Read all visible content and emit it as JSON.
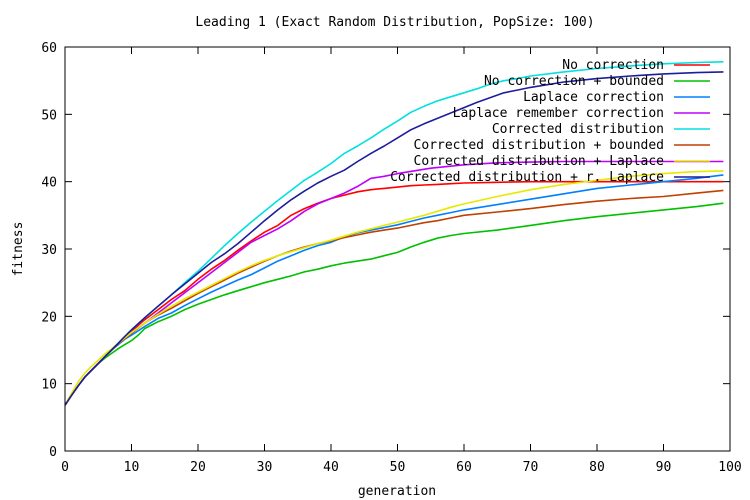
{
  "chart_data": {
    "type": "line",
    "title": "Leading 1 (Exact Random Distribution, PopSize: 100)",
    "xlabel": "generation",
    "ylabel": "fitness",
    "xlim": [
      0,
      100
    ],
    "ylim": [
      0,
      60
    ],
    "xticks": [
      0,
      10,
      20,
      30,
      40,
      50,
      60,
      70,
      80,
      90,
      100
    ],
    "yticks": [
      0,
      10,
      20,
      30,
      40,
      50,
      60
    ],
    "grid": false,
    "legend_position": "top-right",
    "series": [
      {
        "name": "No correction",
        "color": "#ff0000",
        "x": [
          0,
          1,
          2,
          3,
          4,
          5,
          6,
          7,
          8,
          9,
          10,
          12,
          14,
          16,
          18,
          20,
          22,
          24,
          26,
          28,
          30,
          32,
          34,
          36,
          38,
          40,
          42,
          44,
          46,
          48,
          50,
          52,
          54,
          56,
          58,
          60,
          65,
          70,
          75,
          80,
          85,
          90,
          95,
          99
        ],
        "y": [
          6.8,
          8.3,
          9.7,
          11,
          12,
          13,
          14,
          15,
          16,
          17,
          17.8,
          19.5,
          21,
          22.5,
          23.8,
          25.5,
          27,
          28.3,
          29.8,
          31.2,
          32.5,
          33.5,
          35,
          36,
          36.8,
          37.5,
          38,
          38.5,
          38.8,
          39,
          39.2,
          39.4,
          39.5,
          39.6,
          39.7,
          39.8,
          39.9,
          40,
          40,
          40,
          40,
          40,
          40,
          40
        ]
      },
      {
        "name": "No correction + bounded",
        "color": "#00c000",
        "x": [
          0,
          1,
          2,
          3,
          4,
          5,
          6,
          7,
          8,
          9,
          10,
          11,
          12,
          14,
          16,
          18,
          20,
          22,
          24,
          26,
          28,
          30,
          32,
          34,
          36,
          38,
          40,
          42,
          44,
          46,
          48,
          50,
          52,
          54,
          56,
          58,
          60,
          65,
          70,
          75,
          80,
          85,
          90,
          95,
          99
        ],
        "y": [
          6.8,
          8.3,
          9.7,
          11,
          12,
          13,
          13.8,
          14.5,
          15.2,
          15.8,
          16.4,
          17.2,
          18.2,
          19.2,
          20,
          21,
          21.8,
          22.5,
          23.2,
          23.8,
          24.4,
          25,
          25.5,
          26,
          26.6,
          27,
          27.5,
          27.9,
          28.2,
          28.5,
          29,
          29.5,
          30.3,
          31,
          31.6,
          32,
          32.3,
          32.8,
          33.5,
          34.2,
          34.8,
          35.3,
          35.8,
          36.3,
          36.8
        ]
      },
      {
        "name": "Laplace correction",
        "color": "#0080ff",
        "x": [
          0,
          1,
          2,
          3,
          4,
          5,
          6,
          7,
          8,
          9,
          10,
          12,
          14,
          16,
          18,
          20,
          22,
          24,
          26,
          28,
          30,
          32,
          34,
          36,
          38,
          40,
          42,
          44,
          46,
          48,
          50,
          52,
          54,
          56,
          58,
          60,
          65,
          70,
          75,
          80,
          85,
          90,
          95,
          99
        ],
        "y": [
          6.8,
          8.3,
          9.7,
          11,
          12,
          13,
          14,
          15,
          15.8,
          16.6,
          17.2,
          18.5,
          19.7,
          20.5,
          21.6,
          22.6,
          23.6,
          24.5,
          25.4,
          26.2,
          27.2,
          28.2,
          29,
          29.8,
          30.5,
          31,
          31.8,
          32.4,
          32.8,
          33.2,
          33.6,
          34.1,
          34.6,
          35,
          35.4,
          35.8,
          36.6,
          37.4,
          38.2,
          39,
          39.5,
          40,
          40.5,
          41
        ]
      },
      {
        "name": "Laplace remember correction",
        "color": "#c000ff",
        "x": [
          0,
          1,
          2,
          3,
          4,
          5,
          6,
          7,
          8,
          9,
          10,
          12,
          14,
          16,
          18,
          20,
          22,
          24,
          26,
          28,
          30,
          32,
          34,
          36,
          38,
          40,
          42,
          44,
          46,
          48,
          50,
          55,
          60,
          65,
          70,
          75,
          80,
          85,
          90,
          95,
          99
        ],
        "y": [
          6.8,
          8.3,
          9.7,
          11,
          12,
          13,
          14,
          15,
          16,
          17,
          17.6,
          19,
          20.5,
          22,
          23.5,
          25,
          26.5,
          28,
          29.5,
          31,
          32,
          33,
          34.2,
          35.6,
          36.7,
          37.5,
          38.3,
          39.3,
          40.5,
          40.8,
          41.2,
          42,
          42.5,
          42.8,
          42.9,
          43,
          43,
          43,
          43,
          43,
          43
        ]
      },
      {
        "name": "Corrected distribution",
        "color": "#00e0e0",
        "x": [
          0,
          1,
          2,
          3,
          4,
          5,
          6,
          7,
          8,
          9,
          10,
          12,
          14,
          16,
          18,
          20,
          22,
          24,
          26,
          28,
          30,
          32,
          34,
          36,
          38,
          40,
          42,
          44,
          46,
          48,
          50,
          52,
          54,
          56,
          58,
          60,
          62,
          64,
          66,
          68,
          70,
          75,
          80,
          85,
          90,
          95,
          99
        ],
        "y": [
          6.8,
          8.3,
          9.7,
          11,
          12,
          13,
          14,
          15,
          16,
          17,
          18,
          19.8,
          21.5,
          23.2,
          25,
          26.7,
          28.6,
          30.5,
          32.3,
          34,
          35.6,
          37.2,
          38.7,
          40.2,
          41.4,
          42.7,
          44.2,
          45.3,
          46.5,
          47.8,
          49,
          50.3,
          51.2,
          52,
          52.6,
          53.2,
          53.8,
          54.5,
          55,
          55.3,
          55.7,
          56.3,
          56.8,
          57.2,
          57.5,
          57.7,
          57.8
        ]
      },
      {
        "name": "Corrected distribution + bounded",
        "color": "#c04000",
        "x": [
          0,
          1,
          2,
          3,
          4,
          5,
          6,
          7,
          8,
          9,
          10,
          12,
          14,
          16,
          18,
          20,
          22,
          24,
          26,
          28,
          30,
          32,
          34,
          36,
          38,
          40,
          42,
          44,
          46,
          48,
          50,
          52,
          54,
          56,
          58,
          60,
          65,
          70,
          75,
          80,
          85,
          90,
          95,
          99
        ],
        "y": [
          6.8,
          8.3,
          9.7,
          11,
          12,
          13,
          14,
          15,
          15.9,
          16.7,
          17.5,
          19,
          20.2,
          21.2,
          22.3,
          23.4,
          24.4,
          25.4,
          26.4,
          27.3,
          28.2,
          29,
          29.7,
          30.3,
          30.8,
          31.2,
          31.7,
          32.1,
          32.5,
          32.8,
          33.1,
          33.5,
          33.9,
          34.2,
          34.6,
          35,
          35.5,
          36,
          36.6,
          37.1,
          37.5,
          37.8,
          38.3,
          38.7
        ]
      },
      {
        "name": "Corrected distribution + Laplace",
        "color": "#e8e800",
        "x": [
          0,
          1,
          2,
          3,
          4,
          5,
          6,
          7,
          8,
          9,
          10,
          12,
          14,
          16,
          18,
          20,
          22,
          24,
          26,
          28,
          30,
          32,
          34,
          36,
          38,
          40,
          42,
          44,
          46,
          48,
          50,
          52,
          54,
          56,
          58,
          60,
          65,
          70,
          75,
          80,
          85,
          90,
          95,
          99
        ],
        "y": [
          6.8,
          8.6,
          10.3,
          11.6,
          12.6,
          13.5,
          14.4,
          15.2,
          16,
          16.8,
          17.6,
          19,
          20.3,
          21.5,
          22.6,
          23.6,
          24.6,
          25.6,
          26.6,
          27.5,
          28.3,
          29,
          29.6,
          30.2,
          30.8,
          31.3,
          31.9,
          32.5,
          33,
          33.5,
          34,
          34.5,
          35,
          35.6,
          36.2,
          36.7,
          37.8,
          38.8,
          39.6,
          40.2,
          40.8,
          41.2,
          41.5,
          41.6
        ]
      },
      {
        "name": "Corrected distribution + r. Laplace",
        "color": "#1c1c9c",
        "x": [
          0,
          1,
          2,
          3,
          4,
          5,
          6,
          7,
          8,
          9,
          10,
          12,
          14,
          16,
          18,
          20,
          22,
          24,
          26,
          28,
          30,
          32,
          34,
          36,
          38,
          40,
          42,
          44,
          46,
          48,
          50,
          52,
          54,
          56,
          58,
          60,
          62,
          64,
          66,
          68,
          70,
          75,
          80,
          85,
          90,
          95,
          99
        ],
        "y": [
          6.8,
          8.3,
          9.7,
          11,
          12,
          13,
          14,
          15,
          16,
          17,
          18,
          19.8,
          21.5,
          23.2,
          24.8,
          26.4,
          28,
          29.3,
          30.8,
          32.5,
          34.2,
          35.8,
          37.3,
          38.6,
          39.8,
          40.8,
          41.7,
          43,
          44.2,
          45.3,
          46.5,
          47.7,
          48.6,
          49.4,
          50.2,
          51,
          51.8,
          52.5,
          53.2,
          53.6,
          54,
          54.8,
          55.3,
          55.7,
          56,
          56.2,
          56.3
        ]
      }
    ]
  }
}
